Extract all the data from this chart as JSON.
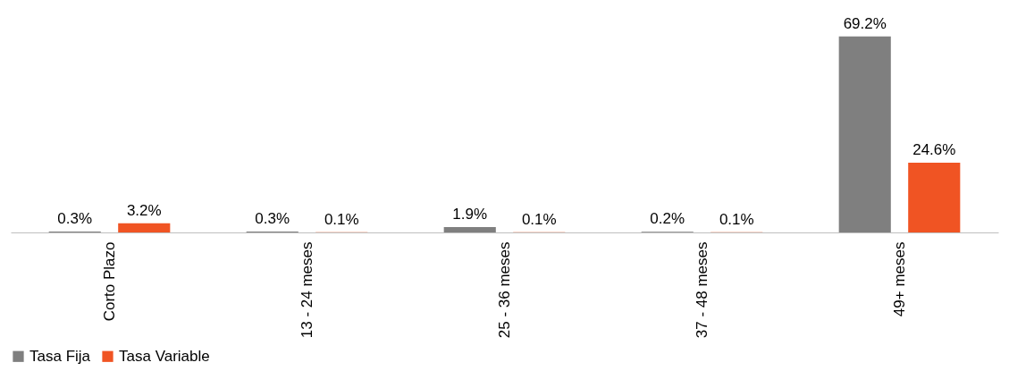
{
  "chart_data": {
    "type": "bar",
    "categories": [
      "Corto Plazo",
      "13 - 24 meses",
      "25 - 36 meses",
      "37 - 48 meses",
      "49+ meses"
    ],
    "series": [
      {
        "name": "Tasa Fija",
        "color": "#7f7f7f",
        "values": [
          0.3,
          0.3,
          1.9,
          0.2,
          69.2
        ],
        "value_labels": [
          "0.3%",
          "0.3%",
          "1.9%",
          "0.2%",
          "69.2%"
        ]
      },
      {
        "name": "Tasa Variable",
        "color": "#f05423",
        "values": [
          3.2,
          0.1,
          0.1,
          0.1,
          24.6
        ],
        "value_labels": [
          "3.2%",
          "0.1%",
          "0.1%",
          "0.1%",
          "24.6%"
        ]
      }
    ],
    "legend": "bottom",
    "grid": false
  }
}
